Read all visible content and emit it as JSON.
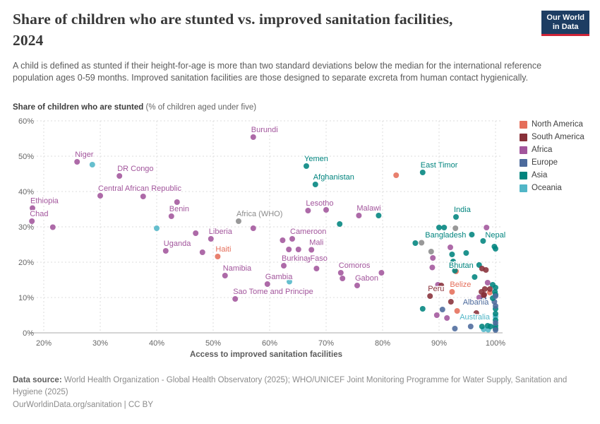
{
  "header": {
    "title_line1": "Share of children who are stunted vs. improved sanitation facilities,",
    "title_line2": "2024",
    "logo": {
      "line1": "Our World",
      "line2": "in Data"
    }
  },
  "subtitle": "A child is defined as stunted if their height-for-age is more than two standard deviations below the median for the international reference population ages 0-59 months. Improved sanitation facilities are those designed to separate excreta from human contact hygienically.",
  "axis": {
    "y_title_bold": "Share of children who are stunted",
    "y_title_rest": " (% of children aged under five)",
    "x_title": "Access to improved sanitation facilities"
  },
  "legend": {
    "items": [
      {
        "label": "North America",
        "region": "north_america",
        "color": "#e56e5a"
      },
      {
        "label": "South America",
        "region": "south_america",
        "color": "#883039"
      },
      {
        "label": "Africa",
        "region": "africa",
        "color": "#a2559c"
      },
      {
        "label": "Europe",
        "region": "europe",
        "color": "#4c6a9c"
      },
      {
        "label": "Asia",
        "region": "asia",
        "color": "#00847e"
      },
      {
        "label": "Oceania",
        "region": "oceania",
        "color": "#51b6c7"
      }
    ]
  },
  "chart_data": {
    "type": "scatter",
    "title": "Share of children who are stunted vs. improved sanitation facilities, 2024",
    "xlabel": "Access to improved sanitation facilities",
    "ylabel": "Share of children who are stunted (% of children aged under five)",
    "xlim": [
      17.5,
      100.8
    ],
    "ylim": [
      0,
      60
    ],
    "x_ticks": [
      20,
      30,
      40,
      50,
      60,
      70,
      80,
      90,
      100
    ],
    "y_ticks": [
      0,
      10,
      20,
      30,
      40,
      50,
      60
    ],
    "grid": true,
    "legend_position": "right",
    "region_colors": {
      "north_america": "#e56e5a",
      "south_america": "#883039",
      "africa": "#a2559c",
      "europe": "#4c6a9c",
      "asia": "#00847e",
      "oceania": "#51b6c7",
      "aggregate": "#8b8b8b"
    },
    "points": [
      {
        "x": 57.1,
        "y": 55.4,
        "r": "africa",
        "label": "Burundi",
        "pos": "above"
      },
      {
        "x": 25.9,
        "y": 48.4,
        "r": "africa",
        "label": "Niger",
        "pos": "above"
      },
      {
        "x": 33.4,
        "y": 44.4,
        "r": "africa",
        "label": "DR Congo",
        "pos": "above"
      },
      {
        "x": 30.0,
        "y": 38.8,
        "r": "africa",
        "label": "Central African Republic",
        "pos": "above"
      },
      {
        "x": 18.0,
        "y": 35.3,
        "r": "africa",
        "label": "Ethiopia",
        "pos": "above"
      },
      {
        "x": 17.9,
        "y": 31.6,
        "r": "africa",
        "label": "Chad",
        "pos": "above"
      },
      {
        "x": 42.6,
        "y": 33.0,
        "r": "africa",
        "label": "Benin",
        "pos": "above"
      },
      {
        "x": 41.6,
        "y": 23.2,
        "r": "africa",
        "label": "Uganda",
        "pos": "above"
      },
      {
        "x": 49.6,
        "y": 26.6,
        "r": "africa",
        "label": "Liberia",
        "pos": "above"
      },
      {
        "x": 50.8,
        "y": 21.6,
        "r": "north_america",
        "label": "Haiti",
        "pos": "above"
      },
      {
        "x": 52.1,
        "y": 16.2,
        "r": "africa",
        "label": "Namibia",
        "pos": "above"
      },
      {
        "x": 53.9,
        "y": 9.6,
        "r": "africa",
        "label": "Sao Tome and Principe",
        "pos": "above"
      },
      {
        "x": 59.6,
        "y": 13.8,
        "r": "africa",
        "label": "Gambia",
        "pos": "above"
      },
      {
        "x": 64.0,
        "y": 26.6,
        "r": "africa",
        "label": "Cameroon",
        "pos": "above"
      },
      {
        "x": 67.4,
        "y": 23.5,
        "r": "africa",
        "label": "Mali",
        "pos": "above"
      },
      {
        "x": 62.5,
        "y": 19.0,
        "r": "africa",
        "label": "Burkina Faso",
        "pos": "above"
      },
      {
        "x": 66.5,
        "y": 47.2,
        "r": "asia",
        "label": "Yemen",
        "pos": "above"
      },
      {
        "x": 68.1,
        "y": 42.0,
        "r": "asia",
        "label": "Afghanistan",
        "pos": "above"
      },
      {
        "x": 66.8,
        "y": 34.6,
        "r": "africa",
        "label": "Lesotho",
        "pos": "above"
      },
      {
        "x": 75.8,
        "y": 33.2,
        "r": "africa",
        "label": "Malawi",
        "pos": "above"
      },
      {
        "x": 72.6,
        "y": 17.0,
        "r": "africa",
        "label": "Comoros",
        "pos": "above"
      },
      {
        "x": 75.5,
        "y": 13.4,
        "r": "africa",
        "label": "Gabon",
        "pos": "above"
      },
      {
        "x": 54.5,
        "y": 31.6,
        "r": "aggregate",
        "label": "Africa (WHO)",
        "pos": "above"
      },
      {
        "x": 87.1,
        "y": 45.4,
        "r": "asia",
        "label": "East Timor",
        "pos": "above"
      },
      {
        "x": 93.0,
        "y": 32.8,
        "r": "asia",
        "label": "India",
        "pos": "above"
      },
      {
        "x": 95.8,
        "y": 27.8,
        "r": "asia",
        "label": "Bangladesh",
        "pos": "left"
      },
      {
        "x": 97.8,
        "y": 26.0,
        "r": "asia",
        "label": "Nepal",
        "pos": "right_above"
      },
      {
        "x": 97.1,
        "y": 19.2,
        "r": "asia",
        "label": "Bhutan",
        "pos": "left"
      },
      {
        "x": 92.3,
        "y": 11.6,
        "r": "north_america",
        "label": "Belize",
        "pos": "above"
      },
      {
        "x": 88.4,
        "y": 10.4,
        "r": "south_america",
        "label": "Peru",
        "pos": "above"
      },
      {
        "x": 99.8,
        "y": 8.8,
        "r": "europe",
        "label": "Albania",
        "pos": "left"
      },
      {
        "x": 100,
        "y": 4.6,
        "r": "oceania",
        "label": "Australia",
        "pos": "left"
      },
      {
        "x": 28.6,
        "y": 47.6,
        "r": "oceania"
      },
      {
        "x": 40.0,
        "y": 29.6,
        "r": "oceania"
      },
      {
        "x": 63.5,
        "y": 14.5,
        "r": "oceania"
      },
      {
        "x": 97.9,
        "y": 1.0,
        "r": "oceania"
      },
      {
        "x": 98.7,
        "y": 0.9,
        "r": "oceania"
      },
      {
        "x": 82.4,
        "y": 44.6,
        "r": "north_america"
      },
      {
        "x": 93.0,
        "y": 17.4,
        "r": "north_america"
      },
      {
        "x": 93.2,
        "y": 6.2,
        "r": "north_america"
      },
      {
        "x": 99.0,
        "y": 11.4,
        "r": "north_america"
      },
      {
        "x": 37.6,
        "y": 38.6,
        "r": "africa"
      },
      {
        "x": 43.6,
        "y": 37.0,
        "r": "africa"
      },
      {
        "x": 21.6,
        "y": 29.9,
        "r": "africa"
      },
      {
        "x": 46.9,
        "y": 28.2,
        "r": "africa"
      },
      {
        "x": 48.1,
        "y": 22.8,
        "r": "africa"
      },
      {
        "x": 57.1,
        "y": 29.6,
        "r": "africa"
      },
      {
        "x": 62.3,
        "y": 26.2,
        "r": "africa"
      },
      {
        "x": 63.4,
        "y": 23.6,
        "r": "africa"
      },
      {
        "x": 65.1,
        "y": 23.6,
        "r": "africa"
      },
      {
        "x": 66.8,
        "y": 20.7,
        "r": "africa"
      },
      {
        "x": 68.3,
        "y": 18.2,
        "r": "africa"
      },
      {
        "x": 70.0,
        "y": 34.8,
        "r": "africa"
      },
      {
        "x": 79.8,
        "y": 17.0,
        "r": "africa"
      },
      {
        "x": 72.9,
        "y": 15.4,
        "r": "africa"
      },
      {
        "x": 88.8,
        "y": 18.5,
        "r": "africa"
      },
      {
        "x": 88.9,
        "y": 21.2,
        "r": "africa"
      },
      {
        "x": 89.8,
        "y": 13.6,
        "r": "africa"
      },
      {
        "x": 92.0,
        "y": 24.2,
        "r": "africa"
      },
      {
        "x": 98.4,
        "y": 29.8,
        "r": "africa"
      },
      {
        "x": 98.6,
        "y": 14.2,
        "r": "africa"
      },
      {
        "x": 89.6,
        "y": 5.0,
        "r": "africa"
      },
      {
        "x": 91.4,
        "y": 4.2,
        "r": "africa"
      },
      {
        "x": 97.1,
        "y": 10.0,
        "r": "africa"
      },
      {
        "x": 72.4,
        "y": 30.8,
        "r": "asia"
      },
      {
        "x": 79.3,
        "y": 33.2,
        "r": "asia"
      },
      {
        "x": 85.8,
        "y": 25.4,
        "r": "asia"
      },
      {
        "x": 90.0,
        "y": 29.8,
        "r": "asia"
      },
      {
        "x": 90.9,
        "y": 29.8,
        "r": "asia"
      },
      {
        "x": 92.3,
        "y": 22.2,
        "r": "asia"
      },
      {
        "x": 94.8,
        "y": 22.6,
        "r": "asia"
      },
      {
        "x": 92.5,
        "y": 20.2,
        "r": "asia"
      },
      {
        "x": 99.8,
        "y": 24.4,
        "r": "asia"
      },
      {
        "x": 100,
        "y": 23.8,
        "r": "asia"
      },
      {
        "x": 92.8,
        "y": 17.6,
        "r": "asia"
      },
      {
        "x": 96.3,
        "y": 15.8,
        "r": "asia"
      },
      {
        "x": 99.5,
        "y": 13.6,
        "r": "asia"
      },
      {
        "x": 100,
        "y": 12.8,
        "r": "asia"
      },
      {
        "x": 99.9,
        "y": 11.6,
        "r": "asia"
      },
      {
        "x": 100,
        "y": 10.8,
        "r": "asia"
      },
      {
        "x": 87.1,
        "y": 6.8,
        "r": "asia"
      },
      {
        "x": 97.6,
        "y": 1.8,
        "r": "asia"
      },
      {
        "x": 98.6,
        "y": 2.0,
        "r": "asia"
      },
      {
        "x": 99.1,
        "y": 1.8,
        "r": "asia"
      },
      {
        "x": 100,
        "y": 3.6,
        "r": "asia"
      },
      {
        "x": 100,
        "y": 2.0,
        "r": "asia"
      },
      {
        "x": 100,
        "y": 1.2,
        "r": "asia"
      },
      {
        "x": 99.5,
        "y": 9.8,
        "r": "asia"
      },
      {
        "x": 100,
        "y": 5.4,
        "r": "asia"
      },
      {
        "x": 100,
        "y": 6.8,
        "r": "asia"
      },
      {
        "x": 100,
        "y": 10.4,
        "r": "europe"
      },
      {
        "x": 90.6,
        "y": 6.6,
        "r": "europe"
      },
      {
        "x": 95.6,
        "y": 1.8,
        "r": "europe"
      },
      {
        "x": 92.8,
        "y": 1.2,
        "r": "europe"
      },
      {
        "x": 97.9,
        "y": 9.6,
        "r": "europe"
      },
      {
        "x": 100,
        "y": 7.6,
        "r": "europe"
      },
      {
        "x": 100,
        "y": 2.8,
        "r": "europe"
      },
      {
        "x": 100,
        "y": 0.8,
        "r": "europe"
      },
      {
        "x": 97.6,
        "y": 18.2,
        "r": "south_america"
      },
      {
        "x": 98.3,
        "y": 17.8,
        "r": "south_america"
      },
      {
        "x": 90.4,
        "y": 13.4,
        "r": "south_america"
      },
      {
        "x": 98.1,
        "y": 12.4,
        "r": "south_america"
      },
      {
        "x": 97.5,
        "y": 11.6,
        "r": "south_america"
      },
      {
        "x": 98.0,
        "y": 10.8,
        "r": "south_america"
      },
      {
        "x": 99.0,
        "y": 12.4,
        "r": "south_america"
      },
      {
        "x": 92.1,
        "y": 8.8,
        "r": "south_america"
      },
      {
        "x": 96.6,
        "y": 5.6,
        "r": "south_america"
      },
      {
        "x": 97.9,
        "y": 10.6,
        "r": "south_america"
      },
      {
        "x": 86.9,
        "y": 25.5,
        "r": "aggregate"
      },
      {
        "x": 88.6,
        "y": 23.0,
        "r": "aggregate"
      },
      {
        "x": 92.9,
        "y": 29.6,
        "r": "aggregate"
      }
    ]
  },
  "footer": {
    "source_bold": "Data source:",
    "source_rest": " World Health Organization - Global Health Observatory (2025); WHO/UNICEF Joint Monitoring Programme for Water Supply, Sanitation and Hygiene (2025)",
    "note": "OurWorldinData.org/sanitation | CC BY"
  }
}
